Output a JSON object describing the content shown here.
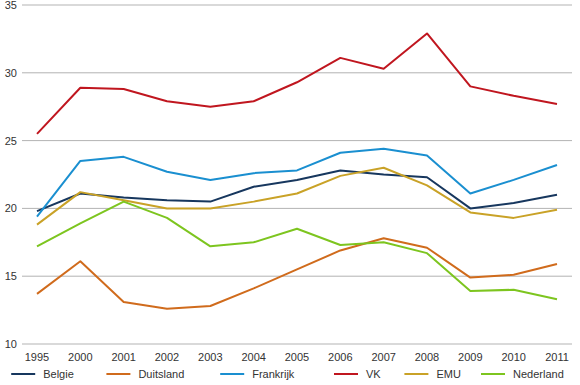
{
  "chart_data": {
    "type": "line",
    "categories": [
      "1995",
      "2000",
      "2001",
      "2002",
      "2003",
      "2004",
      "2005",
      "2006",
      "2007",
      "2008",
      "2009",
      "2010",
      "2011"
    ],
    "series": [
      {
        "name": "Belgie",
        "color": "#17375e",
        "values": [
          19.8,
          21.1,
          20.8,
          20.6,
          20.5,
          21.6,
          22.1,
          22.8,
          22.5,
          22.3,
          20.0,
          20.4,
          21.0
        ]
      },
      {
        "name": "Duitsland",
        "color": "#d06b1c",
        "values": [
          13.7,
          16.1,
          13.1,
          12.6,
          12.8,
          14.1,
          15.5,
          16.9,
          17.8,
          17.1,
          14.9,
          15.1,
          15.9
        ]
      },
      {
        "name": "Frankrijk",
        "color": "#1a8fd0",
        "values": [
          19.4,
          23.5,
          23.8,
          22.7,
          22.1,
          22.6,
          22.8,
          24.1,
          24.4,
          23.9,
          21.1,
          22.1,
          23.2
        ]
      },
      {
        "name": "VK",
        "color": "#c0161f",
        "values": [
          25.5,
          28.9,
          28.8,
          27.9,
          27.5,
          27.9,
          29.3,
          31.1,
          30.3,
          32.9,
          29.0,
          28.3,
          27.7
        ]
      },
      {
        "name": "EMU",
        "color": "#c9a227",
        "values": [
          18.8,
          21.2,
          20.6,
          20.0,
          20.0,
          20.5,
          21.1,
          22.4,
          23.0,
          21.7,
          19.7,
          19.3,
          19.9
        ]
      },
      {
        "name": "Nederland",
        "color": "#7dc51f",
        "values": [
          17.2,
          18.9,
          20.5,
          19.3,
          17.2,
          17.5,
          18.5,
          17.3,
          17.5,
          16.7,
          13.9,
          14.0,
          13.3
        ]
      }
    ],
    "ylim": [
      10,
      35
    ],
    "yticks": [
      10,
      15,
      20,
      25,
      30,
      35
    ],
    "grid": true,
    "legend": "bottom"
  }
}
